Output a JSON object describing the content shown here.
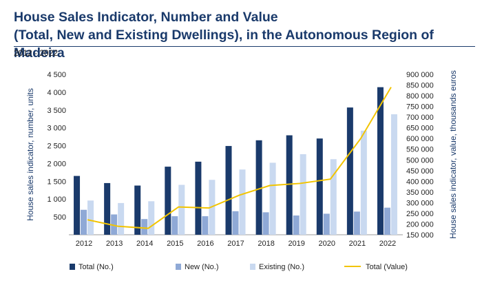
{
  "header": {
    "title_line1": "House Sales Indicator, Number and Value",
    "title_line2": "(Total, New and Existing Dwellings), in the Autonomous Region of Madeira",
    "subtitle": "2012 - 2022"
  },
  "colors": {
    "total": "#1a3a6b",
    "new": "#8fa9d6",
    "existing": "#c9d9f0",
    "value_line": "#f2c400",
    "title": "#1a3a6b"
  },
  "chart_data": {
    "type": "bar",
    "categories": [
      "2012",
      "2013",
      "2014",
      "2015",
      "2016",
      "2017",
      "2018",
      "2019",
      "2020",
      "2021",
      "2022"
    ],
    "series": [
      {
        "name": "Total (No.)",
        "type": "bar",
        "axis": "left",
        "values": [
          1650,
          1450,
          1380,
          1910,
          2050,
          2490,
          2650,
          2790,
          2700,
          3570,
          4140
        ]
      },
      {
        "name": "New (No.)",
        "type": "bar",
        "axis": "left",
        "values": [
          700,
          570,
          440,
          520,
          520,
          660,
          630,
          540,
          590,
          650,
          760
        ]
      },
      {
        "name": "Existing (No.)",
        "type": "bar",
        "axis": "left",
        "values": [
          960,
          890,
          940,
          1400,
          1540,
          1830,
          2020,
          2260,
          2120,
          2920,
          3380
        ]
      },
      {
        "name": "Total (Value)",
        "type": "line",
        "axis": "right",
        "values": [
          220000,
          190000,
          180000,
          280000,
          275000,
          335000,
          380000,
          390000,
          410000,
          600000,
          840000
        ]
      }
    ],
    "ylabel": "House sales indicator, number, units",
    "y2label": "House sales indicator, value, thousands euros",
    "ylim": [
      0,
      4500
    ],
    "y2lim": [
      150000,
      900000
    ],
    "yticks": [
      "500",
      "1 000",
      "1 500",
      "2 000",
      "2 500",
      "3 000",
      "3 500",
      "4 000",
      "4 500"
    ],
    "y2ticks": [
      "150 000",
      "200 000",
      "250 000",
      "300 000",
      "350 000",
      "400 000",
      "450 000",
      "500 000",
      "550 000",
      "600 000",
      "650 000",
      "700 000",
      "750 000",
      "800 000",
      "850 000",
      "900 000"
    ],
    "legend_position": "bottom",
    "grid": false
  }
}
